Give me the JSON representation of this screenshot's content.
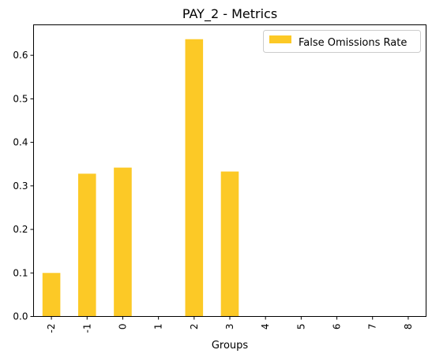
{
  "chart_data": {
    "type": "bar",
    "title": "PAY_2 - Metrics",
    "xlabel": "Groups",
    "ylabel": "",
    "categories": [
      "-2",
      "-1",
      "0",
      "1",
      "2",
      "3",
      "4",
      "5",
      "6",
      "7",
      "8"
    ],
    "series": [
      {
        "name": "False Omissions Rate",
        "values": [
          0.1,
          0.328,
          0.342,
          0,
          0.637,
          0.333,
          0,
          0,
          0,
          0,
          0
        ],
        "color": "#fcc926"
      }
    ],
    "ylim": [
      0,
      0.67
    ],
    "yticks": [
      "0.0",
      "0.1",
      "0.2",
      "0.3",
      "0.4",
      "0.5",
      "0.6"
    ],
    "grid": false,
    "legend_position": "top-right"
  }
}
